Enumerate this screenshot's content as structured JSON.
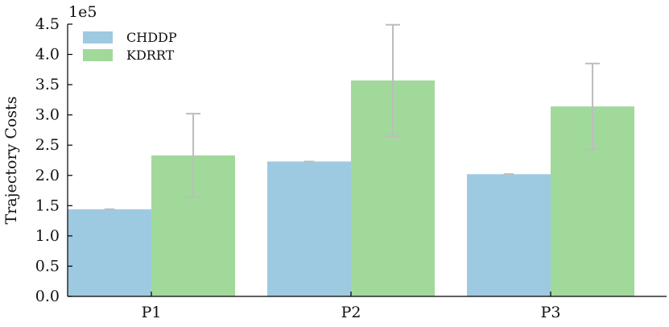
{
  "chart_data": {
    "type": "bar",
    "title": "",
    "xlabel": "",
    "ylabel": "Trajectory Costs",
    "y_multiplier_label": "1e5",
    "categories": [
      "P1",
      "P2",
      "P3"
    ],
    "ylim": [
      0,
      4.5
    ],
    "yticks": [
      "0.0",
      "0.5",
      "1.0",
      "1.5",
      "2.0",
      "2.5",
      "3.0",
      "3.5",
      "4.0",
      "4.5"
    ],
    "grid": false,
    "legend_position": "top-left",
    "series": [
      {
        "name": "CHDDP",
        "color": "#9ecae1",
        "values": [
          1.44,
          2.23,
          2.02
        ],
        "error": [
          0.0,
          0.0,
          0.0
        ]
      },
      {
        "name": "KDRRT",
        "color": "#a1d99b",
        "values": [
          2.33,
          3.57,
          3.14
        ],
        "error": [
          0.69,
          0.92,
          0.71
        ]
      }
    ],
    "error_bar_color": "#bdbdbd"
  }
}
